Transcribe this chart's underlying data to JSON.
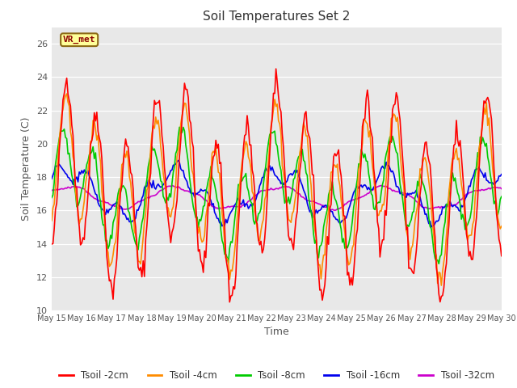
{
  "title": "Soil Temperatures Set 2",
  "xlabel": "Time",
  "ylabel": "Soil Temperature (C)",
  "ylim": [
    10,
    27
  ],
  "yticks": [
    10,
    12,
    14,
    16,
    18,
    20,
    22,
    24,
    26
  ],
  "annotation_text": "VR_met",
  "annotation_color": "#8B0000",
  "annotation_bg": "#FFFF99",
  "annotation_border": "#8B6914",
  "line_colors": {
    "Tsoil -2cm": "#FF0000",
    "Tsoil -4cm": "#FF8C00",
    "Tsoil -8cm": "#00CC00",
    "Tsoil -16cm": "#0000EE",
    "Tsoil -32cm": "#CC00CC"
  },
  "line_widths": {
    "Tsoil -2cm": 1.2,
    "Tsoil -4cm": 1.2,
    "Tsoil -8cm": 1.2,
    "Tsoil -16cm": 1.2,
    "Tsoil -32cm": 1.2
  },
  "x_tick_labels": [
    "May 15",
    "May 16",
    "May 17",
    "May 18",
    "May 19",
    "May 20",
    "May 21",
    "May 22",
    "May 23",
    "May 24",
    "May 25",
    "May 26",
    "May 27",
    "May 28",
    "May 29",
    "May 30"
  ],
  "background_color": "#E8E8E8",
  "legend_ncol": 5
}
